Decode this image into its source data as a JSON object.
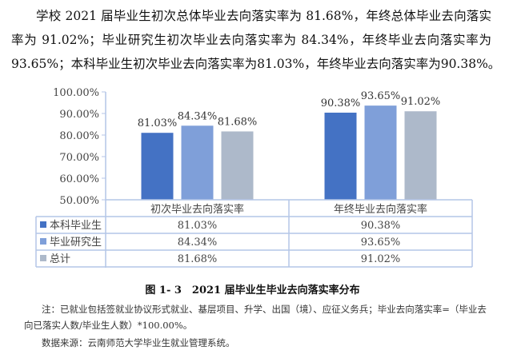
{
  "paragraph": {
    "lines": [
      "学校 2021 届毕业生初次总体毕业去向落实率为 81.68%，年终总体毕业去向落实",
      "率为 91.02%；毕业研究生初次毕业去向落实率为 84.34%，年终毕业去向落实率为",
      "93.65%；本科毕业生初次毕业去向落实率为81.03%，年终毕业去向落实率为90.38%。"
    ]
  },
  "chart_data": {
    "type": "bar",
    "categories": [
      "初次毕业去向落实率",
      "年终毕业去向落实率"
    ],
    "series": [
      {
        "name": "本科毕业生",
        "values": [
          81.03,
          90.38
        ],
        "labels": [
          "81.03%",
          "90.38%"
        ],
        "color": "#4472C4"
      },
      {
        "name": "毕业研究生",
        "values": [
          84.34,
          93.65
        ],
        "labels": [
          "84.34%",
          "93.65%"
        ],
        "color": "#7F9FD9"
      },
      {
        "name": "总计",
        "values": [
          81.68,
          91.02
        ],
        "labels": [
          "81.68%",
          "91.02%"
        ],
        "color": "#ADB9CA"
      }
    ],
    "ylim": [
      50,
      100
    ],
    "yticks": [
      "50.00%",
      "60.00%",
      "70.00%",
      "80.00%",
      "90.00%",
      "100.00%"
    ],
    "grid": false,
    "legend": "data-table",
    "title": "图 1- 3　2021 届毕业生毕业去向落实率分布"
  },
  "notes": {
    "note": "注：已就业包括签就业协议形式就业、基层项目、升学、出国（境）、应征义务兵；毕业去向落实率=（毕业去向已落实人数/毕业生人数）*100.00%。",
    "source": "数据来源：云南师范大学毕业生就业管理系统。"
  }
}
